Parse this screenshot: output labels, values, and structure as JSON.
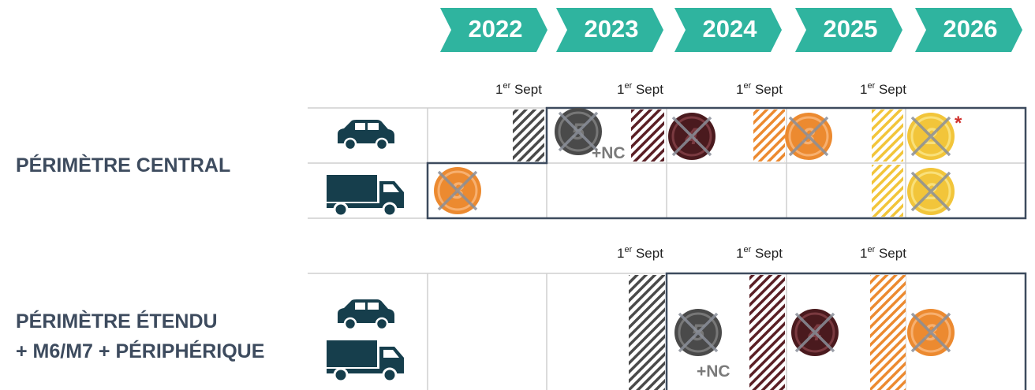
{
  "timeline": {
    "years": [
      "2022",
      "2023",
      "2024",
      "2025",
      "2026"
    ]
  },
  "central": {
    "title": "PÉRIMÈTRE CENTRAL",
    "dates": [
      {
        "day": "1",
        "suffix": "er",
        "month": "Sept"
      },
      {
        "day": "1",
        "suffix": "er",
        "month": "Sept"
      },
      {
        "day": "1",
        "suffix": "er",
        "month": "Sept"
      },
      {
        "day": "1",
        "suffix": "er",
        "month": "Sept"
      }
    ],
    "badges": {
      "car": [
        "5",
        "4",
        "3",
        "2"
      ],
      "truck": [
        "3",
        "2"
      ]
    },
    "note": "+NC",
    "asterisk": "*"
  },
  "extended": {
    "title_lines": [
      "PÉRIMÈTRE ÉTENDU",
      "+ M6/M7 + PÉRIPHÉRIQUE"
    ],
    "dates": [
      {
        "day": "1",
        "suffix": "er",
        "month": "Sept"
      },
      {
        "day": "1",
        "suffix": "er",
        "month": "Sept"
      },
      {
        "day": "1",
        "suffix": "er",
        "month": "Sept"
      }
    ],
    "badges": [
      "5",
      "4",
      "3"
    ],
    "note": "+NC"
  }
}
